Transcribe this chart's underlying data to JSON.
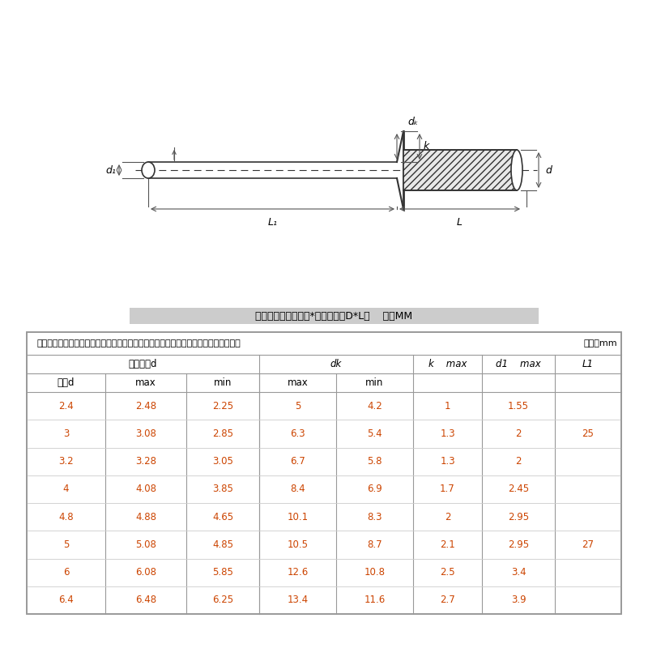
{
  "bg_color": "#ffffff",
  "spec_text": "规格组成：头部直径*头部长度（D*L）    单位MM",
  "note_text": "注：数值为单批次人工测量，存在一定误差，请以实物为准，介意者慎拍或联系客服！",
  "unit_text": "单位：mm",
  "table_data": [
    [
      "2.4",
      "2.48",
      "2.25",
      "5",
      "4.2",
      "1",
      "1.55",
      ""
    ],
    [
      "3",
      "3.08",
      "2.85",
      "6.3",
      "5.4",
      "1.3",
      "2",
      "25"
    ],
    [
      "3.2",
      "3.28",
      "3.05",
      "6.7",
      "5.8",
      "1.3",
      "2",
      ""
    ],
    [
      "4",
      "4.08",
      "3.85",
      "8.4",
      "6.9",
      "1.7",
      "2.45",
      ""
    ],
    [
      "4.8",
      "4.88",
      "4.65",
      "10.1",
      "8.3",
      "2",
      "2.95",
      ""
    ],
    [
      "5",
      "5.08",
      "4.85",
      "10.5",
      "8.7",
      "2.1",
      "2.95",
      "27"
    ],
    [
      "6",
      "6.08",
      "5.85",
      "12.6",
      "10.8",
      "2.5",
      "3.4",
      ""
    ],
    [
      "6.4",
      "6.48",
      "6.25",
      "13.4",
      "11.6",
      "2.7",
      "3.9",
      ""
    ]
  ],
  "table_text_color": "#cc4400",
  "line_color": "#333333",
  "dim_color": "#555555",
  "table_border_color": "#999999",
  "spec_bar_color": "#cccccc"
}
